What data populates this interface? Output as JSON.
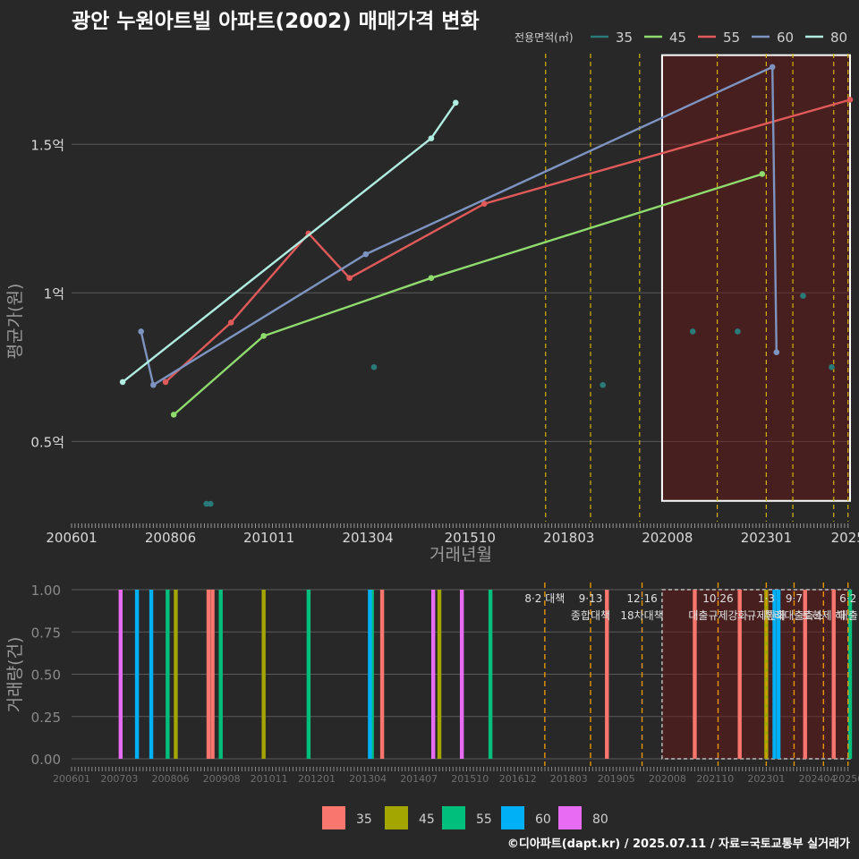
{
  "title": "광안 누원아트빌 아파트(2002) 매매가격 변화",
  "caption": "©디아파트(dapt.kr) / 2025.07.11 / 자료=국토교통부 실거래가",
  "chart_data": [
    {
      "type": "line",
      "xlabel": "거래년월",
      "ylabel": "평균가(원)",
      "xlim": [
        2006.0,
        2025.05
      ],
      "ylim": [
        0.23,
        1.82
      ],
      "x_ticks": [
        {
          "x": 2006.0,
          "label": "200601"
        },
        {
          "x": 2008.42,
          "label": "200806"
        },
        {
          "x": 2010.83,
          "label": "201011"
        },
        {
          "x": 2013.25,
          "label": "201304"
        },
        {
          "x": 2015.75,
          "label": "201510"
        },
        {
          "x": 2018.17,
          "label": "201803"
        },
        {
          "x": 2020.58,
          "label": "202008"
        },
        {
          "x": 2023.0,
          "label": "202301"
        },
        {
          "x": 2025.0,
          "label": "2025"
        }
      ],
      "y_ticks": [
        {
          "y": 0.5,
          "label": "0.5억"
        },
        {
          "y": 1.0,
          "label": "1억"
        },
        {
          "y": 1.5,
          "label": "1.5억"
        }
      ],
      "legend_title": "전용면적(㎡)",
      "legend_position": "top-right",
      "series": [
        {
          "name": "35",
          "color": "#2a7a7a",
          "line": false,
          "points": [
            [
              2009.3,
              0.29
            ],
            [
              2009.4,
              0.29
            ],
            [
              2013.4,
              0.75
            ],
            [
              2019.0,
              0.69
            ],
            [
              2021.2,
              0.87
            ],
            [
              2022.3,
              0.87
            ],
            [
              2023.9,
              0.99
            ],
            [
              2024.6,
              0.75
            ]
          ]
        },
        {
          "name": "45",
          "color": "#8fdb6e",
          "line": true,
          "points": [
            [
              2008.5,
              0.59
            ],
            [
              2010.7,
              0.855
            ],
            [
              2014.8,
              1.05
            ],
            [
              2022.9,
              1.4
            ]
          ]
        },
        {
          "name": "55",
          "color": "#e05a5a",
          "line": true,
          "points": [
            [
              2008.3,
              0.7
            ],
            [
              2009.9,
              0.9
            ],
            [
              2011.8,
              1.2
            ],
            [
              2012.8,
              1.05
            ],
            [
              2016.1,
              1.3
            ],
            [
              2025.05,
              1.65
            ]
          ]
        },
        {
          "name": "60",
          "color": "#7d93c0",
          "line": true,
          "points": [
            [
              2007.7,
              0.87
            ],
            [
              2008.0,
              0.69
            ],
            [
              2013.2,
              1.13
            ],
            [
              2023.15,
              1.76
            ],
            [
              2023.25,
              0.8
            ]
          ]
        },
        {
          "name": "80",
          "color": "#b0ece0",
          "line": true,
          "points": [
            [
              2007.25,
              0.7
            ],
            [
              2014.8,
              1.52
            ],
            [
              2015.4,
              1.64
            ]
          ]
        }
      ],
      "vlines": [
        2017.6,
        2018.7,
        2019.9,
        2021.8,
        2023.0,
        2023.65,
        2024.65,
        2025.0
      ],
      "highlight": {
        "x": [
          2020.45,
          2025.05
        ],
        "y": [
          0.3,
          1.8
        ]
      }
    },
    {
      "type": "bar",
      "xlabel": "",
      "ylabel": "거래량(건)",
      "xlim": [
        2006.0,
        2025.05
      ],
      "ylim": [
        0,
        1.0
      ],
      "x_ticks": [
        {
          "x": 2006.0,
          "label": "200601"
        },
        {
          "x": 2007.17,
          "label": "200703"
        },
        {
          "x": 2008.42,
          "label": "200806"
        },
        {
          "x": 2009.67,
          "label": "200908"
        },
        {
          "x": 2010.83,
          "label": "201011"
        },
        {
          "x": 2012.0,
          "label": "201201"
        },
        {
          "x": 2013.25,
          "label": "201304"
        },
        {
          "x": 2014.5,
          "label": "201407"
        },
        {
          "x": 2015.75,
          "label": "201510"
        },
        {
          "x": 2016.92,
          "label": "201612"
        },
        {
          "x": 2018.17,
          "label": "201803"
        },
        {
          "x": 2019.33,
          "label": "201905"
        },
        {
          "x": 2020.58,
          "label": "202008"
        },
        {
          "x": 2021.75,
          "label": "202110"
        },
        {
          "x": 2023.0,
          "label": "202301"
        },
        {
          "x": 2024.25,
          "label": "202404"
        },
        {
          "x": 2025.0,
          "label": "20250"
        }
      ],
      "y_ticks": [
        {
          "y": 0.0,
          "label": "0.00"
        },
        {
          "y": 0.25,
          "label": "0.25"
        },
        {
          "y": 0.5,
          "label": "0.50"
        },
        {
          "y": 0.75,
          "label": "0.75"
        },
        {
          "y": 1.0,
          "label": "1.00"
        }
      ],
      "legend_position": "bottom",
      "series": [
        {
          "name": "35",
          "color": "#f8766d",
          "x": [
            2009.35,
            2009.45,
            2013.6,
            2019.1,
            2021.25,
            2022.35,
            2023.95,
            2024.65
          ]
        },
        {
          "name": "45",
          "color": "#a3a500",
          "x": [
            2008.55,
            2010.7,
            2015.0,
            2023.0
          ]
        },
        {
          "name": "55",
          "color": "#00bf7d",
          "x": [
            2008.35,
            2009.65,
            2011.8,
            2013.35,
            2016.25,
            2025.05
          ]
        },
        {
          "name": "60",
          "color": "#00b0f6",
          "x": [
            2007.6,
            2007.95,
            2013.3,
            2023.2,
            2023.3
          ]
        },
        {
          "name": "80",
          "color": "#e76bf3",
          "x": [
            2007.2,
            2014.85,
            2015.55
          ]
        }
      ],
      "policies": [
        {
          "x": 2017.58,
          "label": "8·2 대책",
          "sub": ""
        },
        {
          "x": 2018.7,
          "label": "9·13",
          "sub": "종합대책"
        },
        {
          "x": 2019.96,
          "label": "12·16",
          "sub": "18차대책"
        },
        {
          "x": 2021.82,
          "label": "10·26",
          "sub": "대출규제강화"
        },
        {
          "x": 2023.0,
          "label": "1·3",
          "sub": "규제완화"
        },
        {
          "x": 2023.68,
          "label": "9·7",
          "sub": "특례대출축소"
        },
        {
          "x": 2024.4,
          "label": "",
          "sub": "토허제 해"
        },
        {
          "x": 2025.0,
          "label": "6·2",
          "sub": "대출"
        }
      ],
      "highlight": {
        "x": [
          2020.45,
          2025.05
        ],
        "y": [
          0,
          1.0
        ]
      }
    }
  ]
}
